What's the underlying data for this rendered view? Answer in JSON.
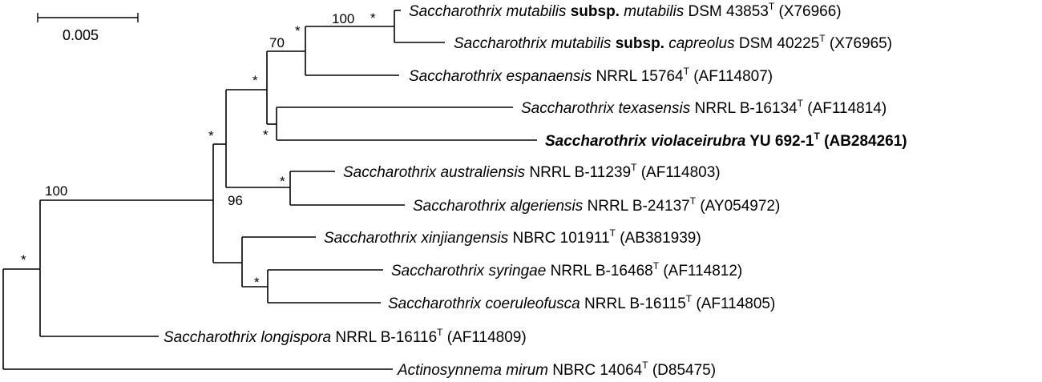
{
  "scale_bar": {
    "label": "0.005"
  },
  "taxa": [
    {
      "id": "mutabilis",
      "genus": "Saccharothrix",
      "epithet": "mutabilis",
      "subsp_word": "subsp.",
      "subsp": "mutabilis",
      "strain": "DSM 43853",
      "type": "T",
      "acc": "(X76966)",
      "bold": false
    },
    {
      "id": "capreolus",
      "genus": "Saccharothrix",
      "epithet": "mutabilis",
      "subsp_word": "subsp.",
      "subsp": "capreolus",
      "strain": "DSM 40225",
      "type": "T",
      "acc": "(X76965)",
      "bold": false
    },
    {
      "id": "espanaensis",
      "genus": "Saccharothrix",
      "epithet": "espanaensis",
      "strain": "NRRL 15764",
      "type": "T",
      "acc": "(AF114807)",
      "bold": false
    },
    {
      "id": "texasensis",
      "genus": "Saccharothrix",
      "epithet": "texasensis",
      "strain": "NRRL B-16134",
      "type": "T",
      "acc": "(AF114814)",
      "bold": false
    },
    {
      "id": "violaceirubra",
      "genus": "Saccharothrix",
      "epithet": "violaceirubra",
      "strain": "YU 692-1",
      "type": "T",
      "acc": "(AB284261)",
      "bold": true
    },
    {
      "id": "australiensis",
      "genus": "Saccharothrix",
      "epithet": "australiensis",
      "strain": "NRRL B-11239",
      "type": "T",
      "acc": "(AF114803)",
      "bold": false
    },
    {
      "id": "algeriensis",
      "genus": "Saccharothrix",
      "epithet": "algeriensis",
      "strain": "NRRL B-24137",
      "type": "T",
      "acc": "(AY054972)",
      "bold": false
    },
    {
      "id": "xinjiangensis",
      "genus": "Saccharothrix",
      "epithet": "xinjiangensis",
      "strain": "NBRC 101911",
      "type": "T",
      "acc": "(AB381939)",
      "bold": false
    },
    {
      "id": "syringae",
      "genus": "Saccharothrix",
      "epithet": "syringae",
      "strain": "NRRL B-16468",
      "type": "T",
      "acc": "(AF114812)",
      "bold": false
    },
    {
      "id": "coeruleofusca",
      "genus": "Saccharothrix",
      "epithet": "coeruleofusca",
      "strain": "NRRL B-16115",
      "type": "T",
      "acc": "(AF114805)",
      "bold": false
    },
    {
      "id": "longispora",
      "genus": "Saccharothrix",
      "epithet": "longispora",
      "strain": "NRRL B-16116",
      "type": "T",
      "acc": "(AF114809)",
      "bold": false
    },
    {
      "id": "mirum",
      "genus": "Actinosynnema",
      "epithet": "mirum",
      "strain": "NBRC 14064",
      "type": "T",
      "acc": "(D85475)",
      "bold": false
    }
  ],
  "support_labels": {
    "mutabilis_pair": "100",
    "mutabilis_pair_star": "*",
    "mutabilis_espanaensis": "70",
    "mutabilis_espanaensis_star": "*",
    "upper_clade": "*",
    "texasensis_pair": "*",
    "ingroup_a": "*",
    "ingroup_a_bs": "96",
    "australiensis_pair": "*",
    "syringae_pair": "*",
    "saccharothrix_clade": "100",
    "root": "*"
  }
}
